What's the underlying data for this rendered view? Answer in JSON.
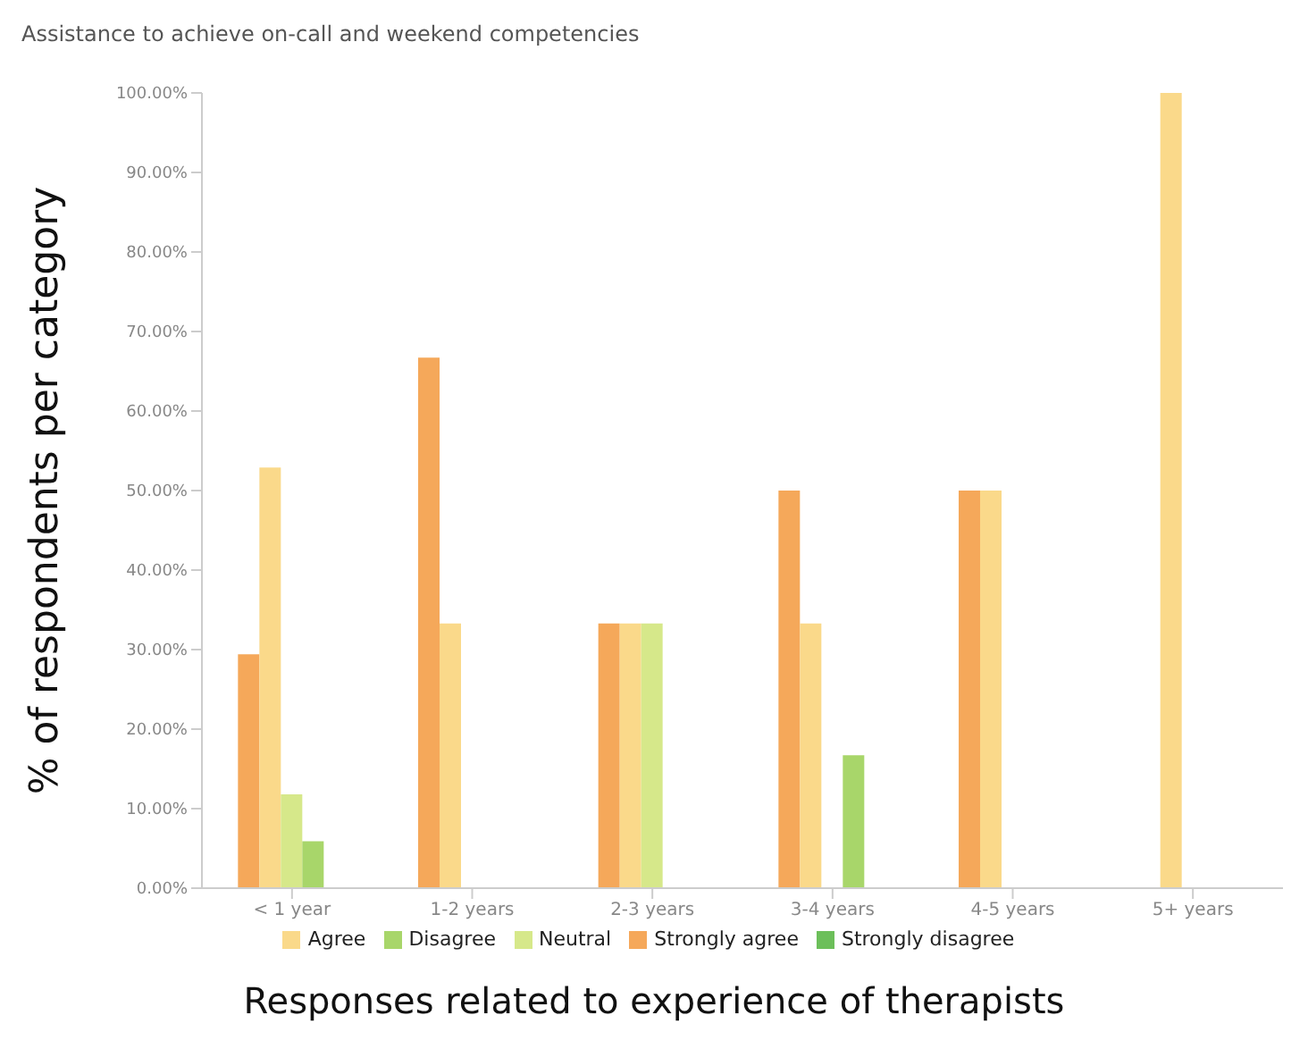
{
  "chart_data": {
    "type": "bar",
    "title": "Assistance to achieve on-call and weekend competencies",
    "xlabel": "Responses related to experience of therapists",
    "ylabel": "% of  respondents per category",
    "categories": [
      "< 1 year",
      "1-2 years",
      "2-3 years",
      "3-4 years",
      "4-5 years",
      "5+ years"
    ],
    "series": [
      {
        "name": "Strongly agree",
        "color": "#f5a85a",
        "values": [
          29.4,
          66.7,
          33.3,
          50,
          50,
          0
        ]
      },
      {
        "name": "Agree",
        "color": "#fad98a",
        "values": [
          52.9,
          33.3,
          33.3,
          33.3,
          50,
          100
        ]
      },
      {
        "name": "Neutral",
        "color": "#d6e88a",
        "values": [
          11.8,
          0,
          33.3,
          0,
          0,
          0
        ]
      },
      {
        "name": "Disagree",
        "color": "#a8d66a",
        "values": [
          5.9,
          0,
          0,
          16.7,
          0,
          0
        ]
      },
      {
        "name": "Strongly disagree",
        "color": "#6cbf5a",
        "values": [
          0,
          0,
          0,
          0,
          0,
          0
        ]
      }
    ],
    "ylim": [
      0,
      100
    ],
    "yticks": [
      {
        "value": 0,
        "label": "0.00%"
      },
      {
        "value": 10,
        "label": "10.00%"
      },
      {
        "value": 20,
        "label": "20.00%"
      },
      {
        "value": 30,
        "label": "30.00%"
      },
      {
        "value": 40,
        "label": "40.00%"
      },
      {
        "value": 50,
        "label": "50.00%"
      },
      {
        "value": 60,
        "label": "60.00%"
      },
      {
        "value": 70,
        "label": "70.00%"
      },
      {
        "value": 80,
        "label": "80.00%"
      },
      {
        "value": 90,
        "label": "90.00%"
      },
      {
        "value": 100,
        "label": "100.00%"
      }
    ],
    "grid": false,
    "legend": "bottom"
  }
}
